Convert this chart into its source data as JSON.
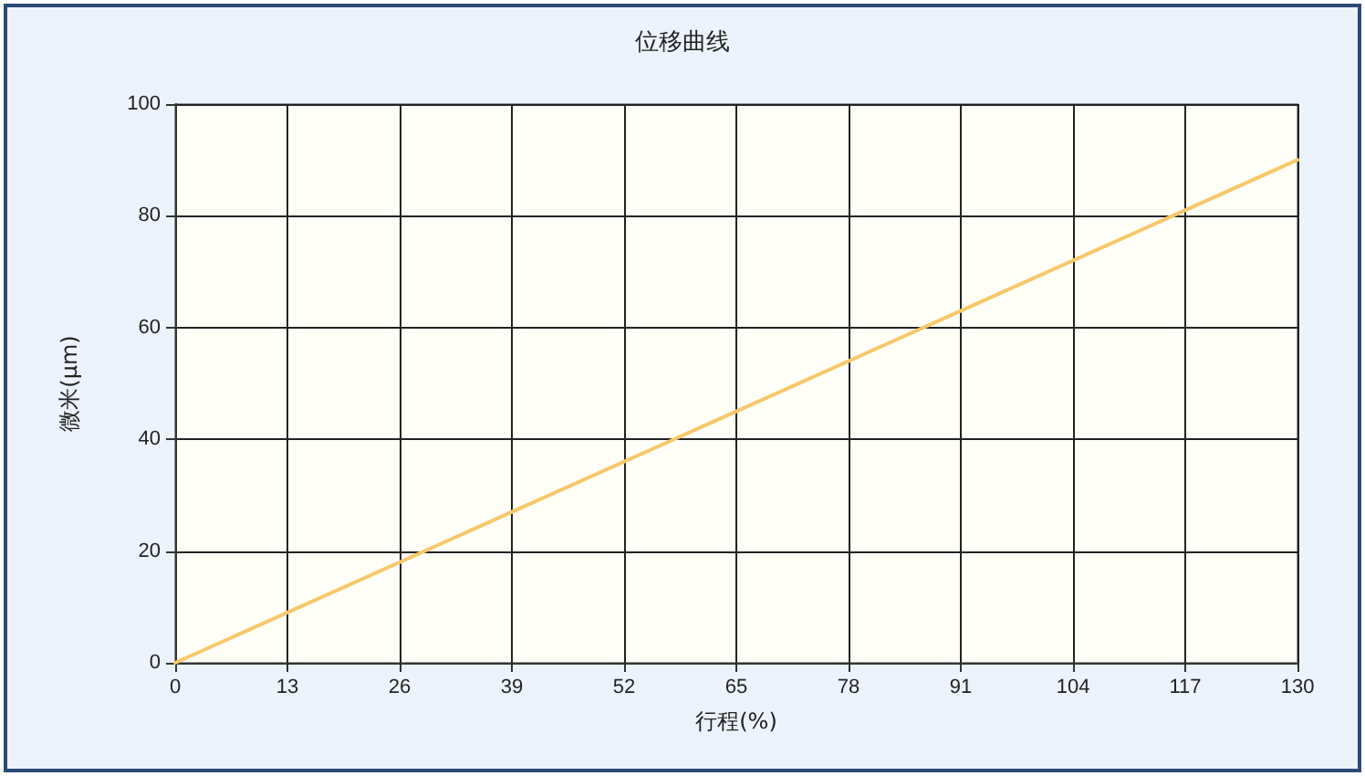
{
  "chart_data": {
    "type": "line",
    "title": "位移曲线",
    "xlabel": "行程(%)",
    "ylabel": "微米(μm)",
    "x": [
      0,
      130
    ],
    "series": [
      {
        "color": "#f7c86a",
        "values": [
          0,
          90
        ]
      }
    ],
    "xlim": [
      0,
      130
    ],
    "xticks": [
      0,
      13,
      26,
      39,
      52,
      65,
      78,
      91,
      104,
      117,
      130
    ],
    "ylim": [
      0,
      100
    ],
    "yticks": [
      0,
      20,
      40,
      60,
      80,
      100
    ],
    "grid": true,
    "marker": "none",
    "line_style": "solid"
  }
}
